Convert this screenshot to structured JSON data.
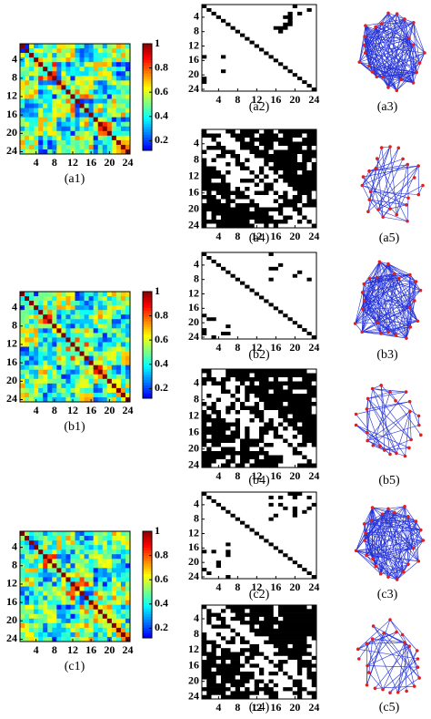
{
  "rows": [
    {
      "heatmap": "(a1)",
      "upper": "(a2)",
      "upper_graph": "(a3)",
      "lower": "(a4)",
      "lower_graph": "(a5)"
    },
    {
      "heatmap": "(b1)",
      "upper": "(b2)",
      "upper_graph": "(b3)",
      "lower": "(b4)",
      "lower_graph": "(b5)"
    },
    {
      "heatmap": "(c1)",
      "upper": "(c2)",
      "upper_graph": "(c3)",
      "lower": "(c4)",
      "lower_graph": "(c5)"
    }
  ],
  "axis_ticks": [
    4,
    8,
    12,
    16,
    20,
    24
  ],
  "colorbar_ticks": [
    1,
    0.8,
    0.6,
    0.4,
    0.2
  ],
  "colorbar_lim": [
    0.12,
    1
  ]
}
